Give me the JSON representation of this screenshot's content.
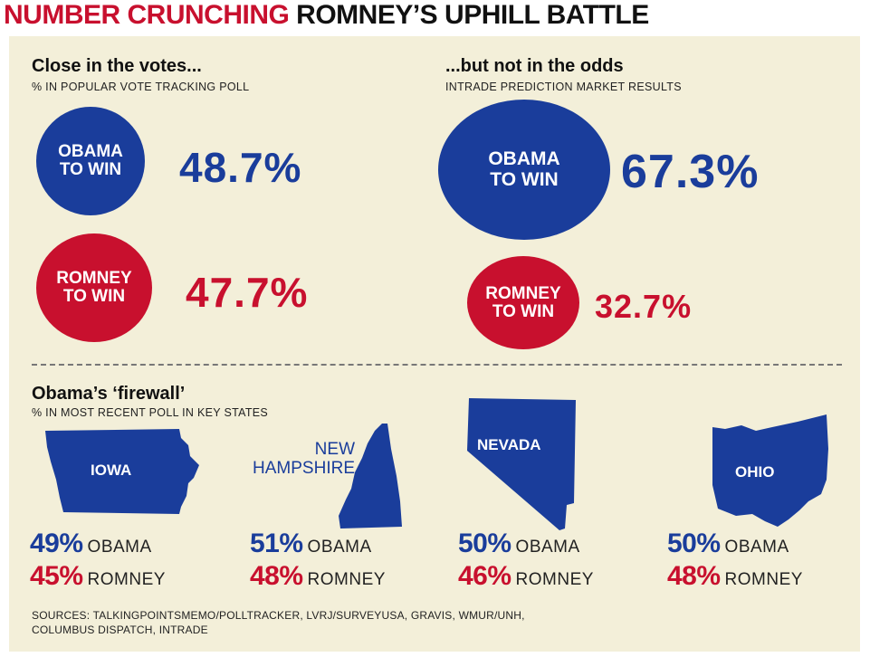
{
  "headline": {
    "kicker": "NUMBER CRUNCHING",
    "title": "ROMNEY’S UPHILL BATTLE"
  },
  "votes": {
    "title": "Close in the votes...",
    "subtitle": "% IN POPULAR VOTE TRACKING POLL",
    "obama": {
      "label_line1": "OBAMA",
      "label_line2": "TO WIN",
      "value": "48.7%"
    },
    "romney": {
      "label_line1": "ROMNEY",
      "label_line2": "TO WIN",
      "value": "47.7%"
    }
  },
  "odds": {
    "title": "...but not in the odds",
    "subtitle": "INTRADE PREDICTION MARKET RESULTS",
    "obama": {
      "label_line1": "OBAMA",
      "label_line2": "TO WIN",
      "value": "67.3%"
    },
    "romney": {
      "label_line1": "ROMNEY",
      "label_line2": "TO WIN",
      "value": "32.7%"
    }
  },
  "firewall": {
    "title": "Obama’s ‘firewall’",
    "subtitle": "% IN MOST RECENT POLL IN KEY STATES",
    "states": [
      {
        "name": "IOWA",
        "obama": "49%",
        "obama_label": "OBAMA",
        "romney": "45%",
        "romney_label": "ROMNEY"
      },
      {
        "name_line1": "NEW",
        "name_line2": "HAMPSHIRE",
        "obama": "51%",
        "obama_label": "OBAMA",
        "romney": "48%",
        "romney_label": "ROMNEY"
      },
      {
        "name": "NEVADA",
        "obama": "50%",
        "obama_label": "OBAMA",
        "romney": "46%",
        "romney_label": "ROMNEY"
      },
      {
        "name": "OHIO",
        "obama": "50%",
        "obama_label": "OBAMA",
        "romney": "48%",
        "romney_label": "ROMNEY"
      }
    ]
  },
  "sources": {
    "line1": "SOURCES: TALKINGPOINTSMEMO/POLLTRACKER, LVRJ/SURVEYUSA, GRAVIS, WMUR/UNH,",
    "line2": "COLUMBUS DISPATCH, INTRADE"
  },
  "colors": {
    "obama_blue": "#1a3d9b",
    "romney_red": "#c8102e",
    "panel_bg": "#f3efd9"
  }
}
